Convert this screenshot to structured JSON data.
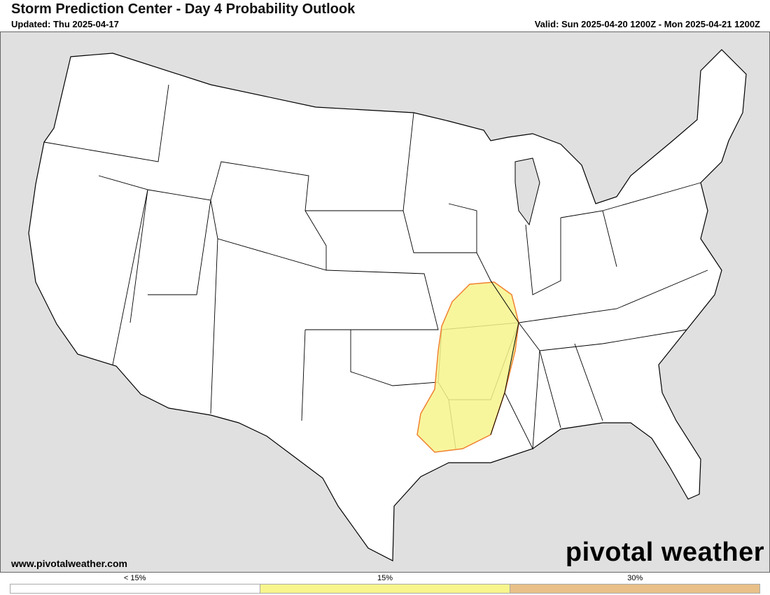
{
  "header": {
    "title": "Storm Prediction Center - Day 4 Probability Outlook",
    "updated": "Updated: Thu 2025-04-17",
    "valid": "Valid: Sun 2025-04-20 1200Z - Mon 2025-04-21 1200Z"
  },
  "footer": {
    "website": "www.pivotalweather.com",
    "logo": "pivotal weather"
  },
  "legend": [
    {
      "label": "< 15%",
      "color": "#ffffff"
    },
    {
      "label": "15%",
      "color": "#f7f58c"
    },
    {
      "label": "30%",
      "color": "#e8c088"
    }
  ],
  "map": {
    "outlook_areas": [
      {
        "category": "15%",
        "fill": "#f7f58c",
        "stroke": "#f08030"
      }
    ]
  }
}
